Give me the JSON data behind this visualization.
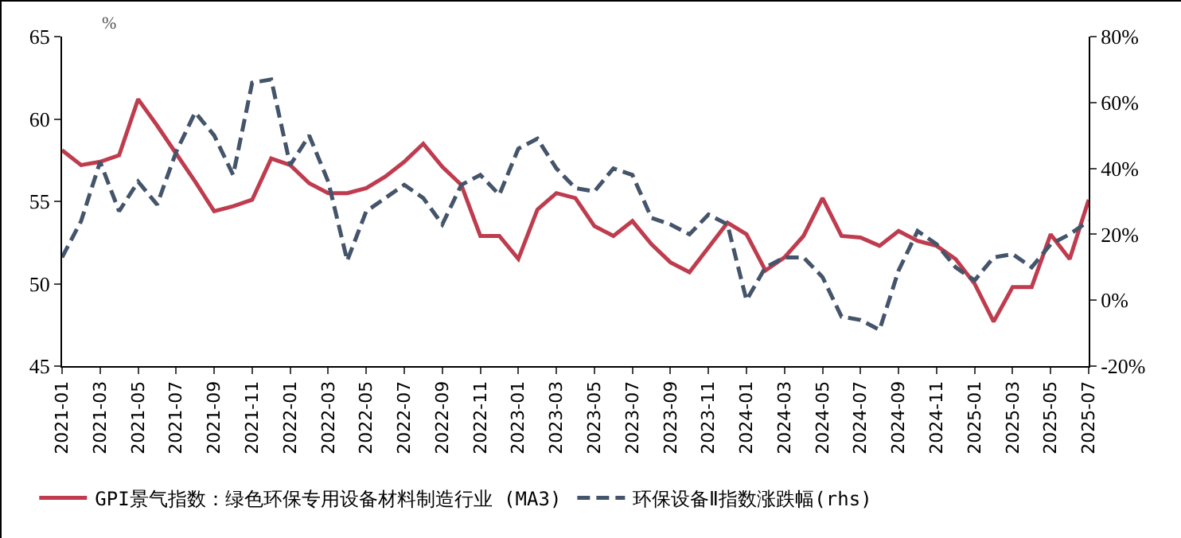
{
  "chart_data": {
    "type": "line",
    "categories": [
      "2021-01",
      null,
      "2021-03",
      null,
      "2021-05",
      null,
      "2021-07",
      null,
      "2021-09",
      null,
      "2021-11",
      null,
      "2022-01",
      null,
      "2022-03",
      null,
      "2022-05",
      null,
      "2022-07",
      null,
      "2022-09",
      null,
      "2022-11",
      null,
      "2023-01",
      null,
      "2023-03",
      null,
      "2023-05",
      null,
      "2023-07",
      null,
      "2023-09",
      null,
      "2023-11",
      null,
      "2024-01",
      null,
      "2024-03",
      null,
      "2024-05",
      null,
      "2024-07",
      null,
      "2024-09",
      null,
      "2024-11",
      null,
      "2025-01",
      null,
      "2025-03",
      null,
      "2025-05",
      null,
      "2025-07"
    ],
    "series": [
      {
        "name": "GPI景气指数：绿色环保专用设备材料制造行业 (MA3)",
        "color": "#be3c4e",
        "line_style": "solid",
        "values": [
          58.1,
          57.2,
          57.4,
          57.8,
          61.2,
          59.6,
          57.9,
          56.2,
          54.4,
          54.7,
          55.1,
          57.6,
          57.2,
          56.1,
          55.5,
          55.5,
          55.8,
          56.5,
          57.4,
          58.5,
          57.1,
          56.0,
          52.9,
          52.9,
          51.5,
          54.5,
          55.5,
          55.2,
          53.5,
          52.9,
          53.8,
          52.4,
          51.3,
          50.7,
          52.2,
          53.7,
          53.0,
          50.8,
          51.6,
          52.9,
          55.2,
          52.9,
          52.8,
          52.3,
          53.2,
          52.6,
          52.3,
          51.5,
          50.0,
          47.7,
          49.8,
          49.8,
          53.0,
          51.5,
          55.1
        ]
      },
      {
        "name": "环保设备Ⅱ指数涨跌幅(rhs)",
        "color": "#44546a",
        "line_style": "dashed",
        "axis": "y2",
        "values": [
          13,
          24,
          42,
          27,
          36,
          29,
          45,
          57,
          50,
          38,
          66,
          67,
          41,
          50,
          36,
          12,
          27,
          31,
          35,
          31,
          23,
          35,
          38,
          32,
          46,
          49,
          40,
          34,
          33,
          40,
          38,
          25,
          23,
          20,
          26,
          23,
          0,
          10,
          13,
          13,
          7,
          -5,
          -6,
          -9,
          9,
          21,
          17,
          10,
          6,
          13,
          14,
          10,
          17,
          20,
          24
        ]
      }
    ],
    "ylim": [
      45,
      65
    ],
    "yticks": [
      45,
      50,
      55,
      60,
      65
    ],
    "y2lim": [
      -20,
      80
    ],
    "y2ticks": [
      {
        "value": -20,
        "label": "-20%"
      },
      {
        "value": 0,
        "label": "0%"
      },
      {
        "value": 20,
        "label": "20%"
      },
      {
        "value": 40,
        "label": "40%"
      },
      {
        "value": 60,
        "label": "60%"
      },
      {
        "value": 80,
        "label": "80%"
      }
    ],
    "annotations": [
      "%"
    ],
    "grid": false,
    "legend": "bottom"
  }
}
